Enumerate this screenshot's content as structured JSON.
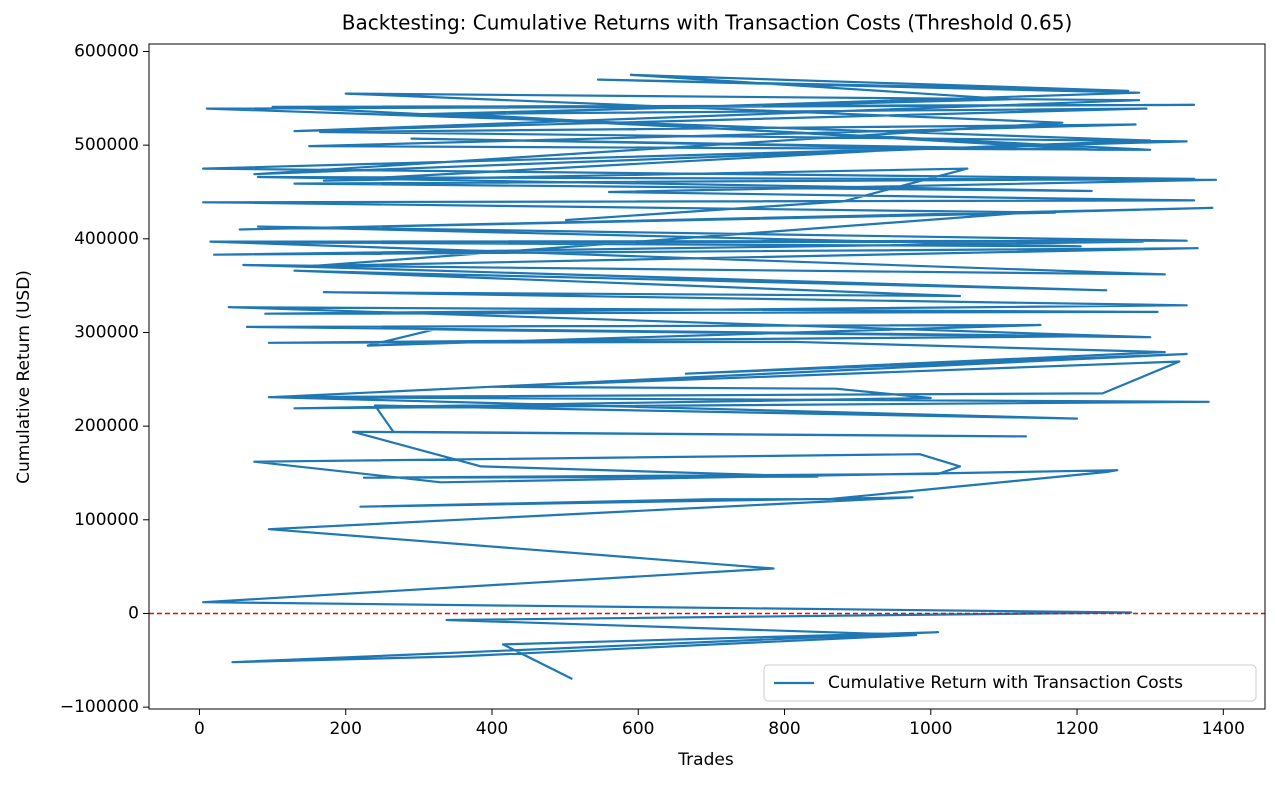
{
  "chart_data": {
    "type": "line",
    "title": "Backtesting: Cumulative Returns with Transaction Costs (Threshold 0.65)",
    "x_label": "Trades",
    "y_label": "Cumulative Return (USD)",
    "x": [
      510,
      415,
      1010,
      45,
      350,
      980,
      338,
      1274,
      5,
      785,
      95,
      975,
      220,
      700,
      860,
      1240,
      1255,
      330,
      75,
      985,
      1040,
      1010,
      225,
      845,
      385,
      210,
      1130,
      265,
      240,
      1200,
      95,
      1380,
      130,
      1000,
      870,
      400,
      1340,
      1235,
      100,
      1350,
      665,
      1320,
      810,
      95,
      1230,
      65,
      1150,
      230,
      320,
      1300,
      40,
      1310,
      90,
      1350,
      170,
      1040,
      130,
      1240,
      60,
      1320,
      15,
      1350,
      80,
      1205,
      105,
      1290,
      20,
      1365,
      155,
      1130,
      1385,
      55,
      1170,
      5,
      1360,
      560,
      1390,
      80,
      1220,
      130,
      1360,
      5,
      1350,
      165,
      1280,
      150,
      1300,
      100,
      1360,
      10,
      1300,
      75,
      1180,
      200,
      1285,
      130,
      1295,
      300,
      1110,
      590,
      1270,
      545,
      1285,
      360,
      1230,
      290,
      1000,
      170,
      1050,
      880,
      500
    ],
    "series": [
      {
        "name": "Cumulative Return with Transaction Costs",
        "color": "#1f77b4",
        "values": [
          -70000,
          -33000,
          -20000,
          -52000,
          -46000,
          -23000,
          -7000,
          1000,
          12000,
          48000,
          90000,
          124000,
          114000,
          122000,
          122000,
          151000,
          153000,
          140000,
          162000,
          170000,
          157000,
          149000,
          145000,
          146000,
          157000,
          194000,
          189000,
          194000,
          222000,
          208000,
          231000,
          226000,
          219000,
          230000,
          240000,
          242000,
          269000,
          235000,
          231000,
          277000,
          256000,
          279000,
          290000,
          289000,
          296000,
          306000,
          308000,
          286000,
          303000,
          295000,
          327000,
          322000,
          320000,
          329000,
          343000,
          339000,
          366000,
          345000,
          372000,
          362000,
          397000,
          398000,
          413000,
          392000,
          396000,
          397000,
          383000,
          390000,
          371000,
          428000,
          433000,
          410000,
          428000,
          439000,
          441000,
          450000,
          463000,
          466000,
          451000,
          459000,
          464000,
          475000,
          504000,
          514000,
          522000,
          499000,
          495000,
          541000,
          543000,
          539000,
          505000,
          469000,
          524000,
          555000,
          548000,
          515000,
          539000,
          533000,
          549000,
          575000,
          558000,
          570000,
          556000,
          533000,
          495000,
          507000,
          497000,
          462000,
          475000,
          440000,
          420000
        ]
      }
    ],
    "hline": {
      "value": 0,
      "color": "#ff0000"
    },
    "xlim": [
      -69,
      1457
    ],
    "ylim": [
      -102000,
      608000
    ],
    "xticks": [
      0,
      200,
      400,
      600,
      800,
      1000,
      1200,
      1400
    ],
    "yticks": [
      {
        "value": -100000,
        "label": "−100000"
      },
      0,
      100000,
      200000,
      300000,
      400000,
      500000,
      600000
    ],
    "legend": "lower right"
  }
}
